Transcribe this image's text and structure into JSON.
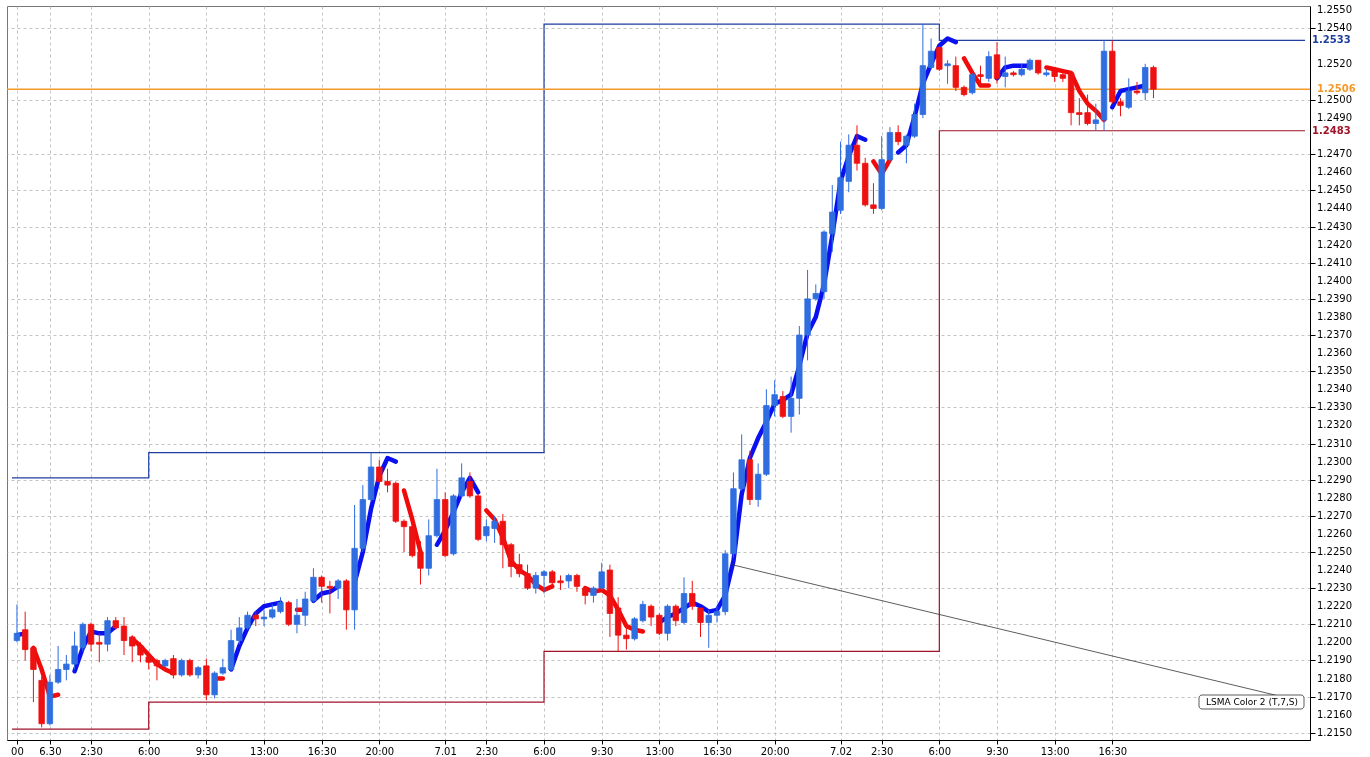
{
  "chart_data": {
    "type": "candlestick",
    "x": [
      "--06-29T22:00",
      "--06-29T22:30",
      "--06-29T23:00",
      "--06-29T23:30",
      "--06-30T00:00",
      "--06-30T00:30",
      "--06-30T01:00",
      "--06-30T01:30",
      "--06-30T02:00",
      "--06-30T02:30",
      "--06-30T03:00",
      "--06-30T03:30",
      "--06-30T04:00",
      "--06-30T04:30",
      "--06-30T05:00",
      "--06-30T05:30",
      "--06-30T06:00",
      "--06-30T06:30",
      "--06-30T07:00",
      "--06-30T07:30",
      "--06-30T08:00",
      "--06-30T08:30",
      "--06-30T09:00",
      "--06-30T09:30",
      "--06-30T10:00",
      "--06-30T10:30",
      "--06-30T11:00",
      "--06-30T11:30",
      "--06-30T12:00",
      "--06-30T12:30",
      "--06-30T13:00",
      "--06-30T13:30",
      "--06-30T14:00",
      "--06-30T14:30",
      "--06-30T15:00",
      "--06-30T15:30",
      "--06-30T16:00",
      "--06-30T16:30",
      "--06-30T17:00",
      "--06-30T17:30",
      "--06-30T18:00",
      "--06-30T18:30",
      "--06-30T19:00",
      "--06-30T19:30",
      "--06-30T20:00",
      "--06-30T20:30",
      "--06-30T21:00",
      "--06-30T21:30",
      "--06-30T22:00",
      "--06-30T22:30",
      "--06-30T23:00",
      "--06-30T23:30",
      "--07-01T00:00",
      "--07-01T00:30",
      "--07-01T01:00",
      "--07-01T01:30",
      "--07-01T02:00",
      "--07-01T02:30",
      "--07-01T03:00",
      "--07-01T03:30",
      "--07-01T04:00",
      "--07-01T04:30",
      "--07-01T05:00",
      "--07-01T05:30",
      "--07-01T06:00",
      "--07-01T06:30",
      "--07-01T07:00",
      "--07-01T07:30",
      "--07-01T08:00",
      "--07-01T08:30",
      "--07-01T09:00",
      "--07-01T09:30",
      "--07-01T10:00",
      "--07-01T10:30",
      "--07-01T11:00",
      "--07-01T11:30",
      "--07-01T12:00",
      "--07-01T12:30",
      "--07-01T13:00",
      "--07-01T13:30",
      "--07-01T14:00",
      "--07-01T14:30",
      "--07-01T15:00",
      "--07-01T15:30",
      "--07-01T16:00",
      "--07-01T16:30",
      "--07-01T17:00",
      "--07-01T17:30",
      "--07-01T18:00",
      "--07-01T18:30",
      "--07-01T19:00",
      "--07-01T19:30",
      "--07-01T20:00",
      "--07-01T20:30",
      "--07-01T21:00",
      "--07-01T21:30",
      "--07-01T22:00",
      "--07-01T22:30",
      "--07-01T23:00",
      "--07-01T23:30",
      "--07-02T00:00",
      "--07-02T00:30",
      "--07-02T01:00",
      "--07-02T01:30",
      "--07-02T02:00",
      "--07-02T02:30",
      "--07-02T03:00",
      "--07-02T03:30",
      "--07-02T04:00",
      "--07-02T04:30",
      "--07-02T05:00",
      "--07-02T05:30",
      "--07-02T06:00",
      "--07-02T06:30",
      "--07-02T07:00",
      "--07-02T07:30",
      "--07-02T08:00",
      "--07-02T08:30",
      "--07-02T09:00",
      "--07-02T09:30",
      "--07-02T10:00",
      "--07-02T10:30",
      "--07-02T11:00",
      "--07-02T11:30",
      "--07-02T12:00",
      "--07-02T12:30",
      "--07-02T13:00",
      "--07-02T13:30",
      "--07-02T14:00",
      "--07-02T14:30",
      "--07-02T15:00",
      "--07-02T15:30",
      "--07-02T16:00",
      "--07-02T16:30",
      "--07-02T17:00",
      "--07-02T17:30",
      "--07-02T18:00",
      "--07-02T18:30",
      "--07-02T19:00"
    ],
    "ohlc": [
      [
        1.2201,
        1.2221,
        1.22,
        1.2205
      ],
      [
        1.2207,
        1.2217,
        1.219,
        1.2196
      ],
      [
        1.2197,
        1.2198,
        1.2167,
        1.2185
      ],
      [
        1.2179,
        1.2181,
        1.2153,
        1.2155
      ],
      [
        1.2155,
        1.2182,
        1.2154,
        1.2178
      ],
      [
        1.2178,
        1.2198,
        1.2177,
        1.2185
      ],
      [
        1.2185,
        1.2193,
        1.2179,
        1.2188
      ],
      [
        1.2188,
        1.2206,
        1.2185,
        1.2198
      ],
      [
        1.2197,
        1.2211,
        1.2195,
        1.221
      ],
      [
        1.221,
        1.2211,
        1.2195,
        1.2199
      ],
      [
        1.22,
        1.2205,
        1.2189,
        1.2199
      ],
      [
        1.2199,
        1.2214,
        1.2195,
        1.2212
      ],
      [
        1.2212,
        1.2214,
        1.2207,
        1.2208
      ],
      [
        1.2209,
        1.2214,
        1.2193,
        1.2201
      ],
      [
        1.2203,
        1.2204,
        1.2189,
        1.2198
      ],
      [
        1.2198,
        1.22,
        1.2189,
        1.2193
      ],
      [
        1.2192,
        1.2195,
        1.2185,
        1.2189
      ],
      [
        1.219,
        1.2191,
        1.2179,
        1.2187
      ],
      [
        1.2187,
        1.2191,
        1.2186,
        1.219
      ],
      [
        1.2191,
        1.2193,
        1.218,
        1.2182
      ],
      [
        1.2182,
        1.2191,
        1.2181,
        1.219
      ],
      [
        1.219,
        1.2191,
        1.2181,
        1.2182
      ],
      [
        1.2182,
        1.2187,
        1.218,
        1.2186
      ],
      [
        1.2187,
        1.2191,
        1.2168,
        1.2171
      ],
      [
        1.2171,
        1.2184,
        1.2169,
        1.2183
      ],
      [
        1.2183,
        1.2191,
        1.2182,
        1.2186
      ],
      [
        1.2185,
        1.2207,
        1.2184,
        1.2201
      ],
      [
        1.2201,
        1.2214,
        1.2199,
        1.2208
      ],
      [
        1.2208,
        1.2217,
        1.2207,
        1.2215
      ],
      [
        1.2215,
        1.2217,
        1.2209,
        1.2213
      ],
      [
        1.2213,
        1.2218,
        1.2209,
        1.2214
      ],
      [
        1.2214,
        1.2221,
        1.2213,
        1.2218
      ],
      [
        1.2217,
        1.2225,
        1.2216,
        1.2222
      ],
      [
        1.2222,
        1.2223,
        1.2209,
        1.221
      ],
      [
        1.221,
        1.2224,
        1.2205,
        1.2215
      ],
      [
        1.2215,
        1.2228,
        1.2209,
        1.2224
      ],
      [
        1.2223,
        1.2241,
        1.2222,
        1.2236
      ],
      [
        1.2236,
        1.2237,
        1.2222,
        1.2231
      ],
      [
        1.2231,
        1.2234,
        1.2216,
        1.223
      ],
      [
        1.223,
        1.2235,
        1.2224,
        1.2234
      ],
      [
        1.2234,
        1.2235,
        1.2207,
        1.2218
      ],
      [
        1.2218,
        1.2276,
        1.2207,
        1.2252
      ],
      [
        1.2252,
        1.2287,
        1.225,
        1.2279
      ],
      [
        1.2279,
        1.2305,
        1.2278,
        1.2297
      ],
      [
        1.2297,
        1.2301,
        1.2288,
        1.2289
      ],
      [
        1.2289,
        1.2296,
        1.2283,
        1.2287
      ],
      [
        1.2288,
        1.2289,
        1.2266,
        1.2267
      ],
      [
        1.2267,
        1.2268,
        1.225,
        1.2264
      ],
      [
        1.2264,
        1.2268,
        1.2247,
        1.2248
      ],
      [
        1.225,
        1.2256,
        1.2232,
        1.2241
      ],
      [
        1.2241,
        1.2268,
        1.2237,
        1.2259
      ],
      [
        1.2259,
        1.2296,
        1.2258,
        1.2279
      ],
      [
        1.2279,
        1.2283,
        1.2247,
        1.2248
      ],
      [
        1.2249,
        1.2282,
        1.2248,
        1.2281
      ],
      [
        1.2281,
        1.2299,
        1.228,
        1.2291
      ],
      [
        1.2289,
        1.2294,
        1.228,
        1.2281
      ],
      [
        1.2281,
        1.2282,
        1.2256,
        1.2257
      ],
      [
        1.2259,
        1.2268,
        1.2256,
        1.2264
      ],
      [
        1.2263,
        1.227,
        1.2255,
        1.2267
      ],
      [
        1.2267,
        1.2271,
        1.2241,
        1.2254
      ],
      [
        1.2254,
        1.2255,
        1.2236,
        1.2242
      ],
      [
        1.2243,
        1.2249,
        1.2236,
        1.2238
      ],
      [
        1.2238,
        1.2243,
        1.2229,
        1.223
      ],
      [
        1.223,
        1.2239,
        1.2227,
        1.2237
      ],
      [
        1.2237,
        1.224,
        1.2227,
        1.2239
      ],
      [
        1.2239,
        1.224,
        1.2232,
        1.2233
      ],
      [
        1.2234,
        1.2237,
        1.2229,
        1.2233
      ],
      [
        1.2234,
        1.2238,
        1.223,
        1.2237
      ],
      [
        1.2237,
        1.2238,
        1.2228,
        1.2231
      ],
      [
        1.223,
        1.2231,
        1.2221,
        1.2226
      ],
      [
        1.2226,
        1.2231,
        1.2222,
        1.223
      ],
      [
        1.223,
        1.2244,
        1.2229,
        1.2239
      ],
      [
        1.224,
        1.2243,
        1.2203,
        1.2216
      ],
      [
        1.2219,
        1.2225,
        1.2195,
        1.2204
      ],
      [
        1.2204,
        1.2211,
        1.2196,
        1.2202
      ],
      [
        1.2202,
        1.2214,
        1.2201,
        1.2213
      ],
      [
        1.2212,
        1.2223,
        1.2211,
        1.2221
      ],
      [
        1.222,
        1.2221,
        1.2209,
        1.2214
      ],
      [
        1.2215,
        1.2216,
        1.2204,
        1.2205
      ],
      [
        1.2205,
        1.2221,
        1.2201,
        1.222
      ],
      [
        1.222,
        1.2221,
        1.2209,
        1.2212
      ],
      [
        1.2211,
        1.2236,
        1.221,
        1.2227
      ],
      [
        1.2227,
        1.2234,
        1.2218,
        1.222
      ],
      [
        1.2219,
        1.2219,
        1.2203,
        1.2211
      ],
      [
        1.2211,
        1.2218,
        1.2197,
        1.2215
      ],
      [
        1.2215,
        1.222,
        1.2211,
        1.2217
      ],
      [
        1.2217,
        1.2251,
        1.2215,
        1.2249
      ],
      [
        1.2249,
        1.2294,
        1.2247,
        1.2285
      ],
      [
        1.2285,
        1.2315,
        1.2284,
        1.2301
      ],
      [
        1.2301,
        1.2306,
        1.2276,
        1.2279
      ],
      [
        1.2279,
        1.2299,
        1.2275,
        1.2293
      ],
      [
        1.2293,
        1.234,
        1.2292,
        1.2331
      ],
      [
        1.2331,
        1.2345,
        1.2325,
        1.2337
      ],
      [
        1.2336,
        1.2339,
        1.2324,
        1.2325
      ],
      [
        1.2325,
        1.2347,
        1.2316,
        1.2335
      ],
      [
        1.2335,
        1.2375,
        1.2326,
        1.237
      ],
      [
        1.237,
        1.2406,
        1.2356,
        1.239
      ],
      [
        1.239,
        1.2398,
        1.2389,
        1.2393
      ],
      [
        1.2394,
        1.2428,
        1.239,
        1.2427
      ],
      [
        1.2426,
        1.2453,
        1.2416,
        1.2438
      ],
      [
        1.2439,
        1.2477,
        1.2437,
        1.2457
      ],
      [
        1.2455,
        1.2481,
        1.2449,
        1.2475
      ],
      [
        1.2475,
        1.2486,
        1.2461,
        1.2465
      ],
      [
        1.2465,
        1.2468,
        1.2441,
        1.2442
      ],
      [
        1.2442,
        1.2454,
        1.2437,
        1.244
      ],
      [
        1.244,
        1.248,
        1.2439,
        1.2467
      ],
      [
        1.2467,
        1.2485,
        1.2466,
        1.2482
      ],
      [
        1.2482,
        1.2486,
        1.2475,
        1.2477
      ],
      [
        1.2475,
        1.2481,
        1.2465,
        1.248
      ],
      [
        1.248,
        1.2498,
        1.2479,
        1.2492
      ],
      [
        1.2492,
        1.2542,
        1.249,
        1.2519
      ],
      [
        1.2518,
        1.2534,
        1.2517,
        1.2527
      ],
      [
        1.2529,
        1.253,
        1.2516,
        1.2517
      ],
      [
        1.2519,
        1.2522,
        1.2509,
        1.252
      ],
      [
        1.2519,
        1.2524,
        1.2505,
        1.2507
      ],
      [
        1.2507,
        1.2508,
        1.2502,
        1.2503
      ],
      [
        1.2504,
        1.2515,
        1.2503,
        1.2514
      ],
      [
        1.2514,
        1.2519,
        1.2507,
        1.2513
      ],
      [
        1.2512,
        1.2527,
        1.251,
        1.2524
      ],
      [
        1.2525,
        1.2532,
        1.2509,
        1.2512
      ],
      [
        1.2513,
        1.2524,
        1.2507,
        1.2515
      ],
      [
        1.2515,
        1.2516,
        1.2513,
        1.2514
      ],
      [
        1.2514,
        1.252,
        1.2513,
        1.2517
      ],
      [
        1.2517,
        1.2523,
        1.2516,
        1.2522
      ],
      [
        1.2522,
        1.2522,
        1.2514,
        1.2515
      ],
      [
        1.2514,
        1.2517,
        1.2513,
        1.2515
      ],
      [
        1.2516,
        1.2517,
        1.251,
        1.2513
      ],
      [
        1.2514,
        1.2516,
        1.251,
        1.2512
      ],
      [
        1.2515,
        1.2516,
        1.2486,
        1.2493
      ],
      [
        1.2493,
        1.2501,
        1.2486,
        1.2492
      ],
      [
        1.2493,
        1.2503,
        1.2486,
        1.2487
      ],
      [
        1.2487,
        1.2498,
        1.2483,
        1.2489
      ],
      [
        1.2489,
        1.2533,
        1.2483,
        1.2527
      ],
      [
        1.2527,
        1.2533,
        1.2498,
        1.2499
      ],
      [
        1.2499,
        1.2501,
        1.2491,
        1.2497
      ],
      [
        1.2496,
        1.2512,
        1.2495,
        1.2505
      ],
      [
        1.2505,
        1.251,
        1.2503,
        1.2504
      ],
      [
        1.2504,
        1.252,
        1.25,
        1.2518
      ],
      [
        1.2518,
        1.2519,
        1.2501,
        1.2506
      ]
    ],
    "colors": [
      "#2f6de0",
      "#ee1111",
      "#ee1111",
      "#ee1111",
      "#2f6de0",
      "#2f6de0",
      "#2f6de0",
      "#2f6de0",
      "#2f6de0",
      "#ee1111",
      "#ee1111",
      "#2f6de0",
      "#ee1111",
      "#ee1111",
      "#ee1111",
      "#ee1111",
      "#ee1111",
      "#ee1111",
      "#2f6de0",
      "#ee1111",
      "#2f6de0",
      "#ee1111",
      "#2f6de0",
      "#ee1111",
      "#2f6de0",
      "#2f6de0",
      "#2f6de0",
      "#2f6de0",
      "#2f6de0",
      "#ee1111",
      "#2f6de0",
      "#2f6de0",
      "#2f6de0",
      "#ee1111",
      "#2f6de0",
      "#2f6de0",
      "#2f6de0",
      "#ee1111",
      "#ee1111",
      "#2f6de0",
      "#ee1111",
      "#2f6de0",
      "#2f6de0",
      "#2f6de0",
      "#ee1111",
      "#ee1111",
      "#ee1111",
      "#ee1111",
      "#ee1111",
      "#ee1111",
      "#2f6de0",
      "#2f6de0",
      "#ee1111",
      "#2f6de0",
      "#2f6de0",
      "#ee1111",
      "#ee1111",
      "#2f6de0",
      "#2f6de0",
      "#ee1111",
      "#ee1111",
      "#ee1111",
      "#ee1111",
      "#2f6de0",
      "#2f6de0",
      "#ee1111",
      "#ee1111",
      "#2f6de0",
      "#ee1111",
      "#ee1111",
      "#2f6de0",
      "#2f6de0",
      "#ee1111",
      "#ee1111",
      "#ee1111",
      "#2f6de0",
      "#2f6de0",
      "#ee1111",
      "#ee1111",
      "#2f6de0",
      "#ee1111",
      "#2f6de0",
      "#ee1111",
      "#ee1111",
      "#2f6de0",
      "#2f6de0",
      "#2f6de0",
      "#2f6de0",
      "#2f6de0",
      "#ee1111",
      "#2f6de0",
      "#2f6de0",
      "#2f6de0",
      "#ee1111",
      "#2f6de0",
      "#2f6de0",
      "#2f6de0",
      "#2f6de0",
      "#2f6de0",
      "#2f6de0",
      "#2f6de0",
      "#2f6de0",
      "#ee1111",
      "#ee1111",
      "#ee1111",
      "#2f6de0",
      "#2f6de0",
      "#ee1111",
      "#2f6de0",
      "#2f6de0",
      "#2f6de0",
      "#2f6de0",
      "#ee1111",
      "#2f6de0",
      "#ee1111",
      "#ee1111",
      "#2f6de0",
      "#ee1111",
      "#2f6de0",
      "#ee1111",
      "#2f6de0",
      "#ee1111",
      "#2f6de0",
      "#2f6de0",
      "#ee1111",
      "#2f6de0",
      "#ee1111",
      "#ee1111",
      "#ee1111",
      "#ee1111",
      "#ee1111",
      "#2f6de0",
      "#2f6de0",
      "#ee1111",
      "#ee1111",
      "#2f6de0",
      "#ee1111",
      "#2f6de0",
      "#ee1111"
    ],
    "series": [
      {
        "type": "step",
        "color": "#1f3f9f",
        "x": [
          "--06-29T21:42",
          "--06-30T06:00",
          "--07-01T06:00",
          "--07-02T06:00",
          "--07-03T04:12"
        ],
        "values": [
          1.2291,
          1.2305,
          1.2542,
          1.2533,
          1.2533
        ],
        "value_labels": [
          null,
          null,
          null,
          null,
          "1.2533"
        ]
      },
      {
        "type": "step",
        "color": "#a01228",
        "x": [
          "--06-29T21:42",
          "--06-30T06:00",
          "--07-01T06:00",
          "--07-02T06:00",
          "--07-03T04:12"
        ],
        "values": [
          1.2152,
          1.2167,
          1.2195,
          1.2483,
          1.2483
        ],
        "value_labels": [
          null,
          null,
          null,
          null,
          "1.2483"
        ]
      },
      {
        "type": "line",
        "color": "#0a10f0",
        "x": [
          "--06-29T22:00",
          "--06-29T22:30",
          "--06-29T22:45",
          "--06-30T01:30",
          "--06-30T02:00",
          "--06-30T02:30",
          "--06-30T03:00",
          "--06-30T03:30",
          "--06-30T04:00",
          "--06-30T04:15",
          "--06-30T11:00",
          "--06-30T11:30",
          "--06-30T12:00",
          "--06-30T12:30",
          "--06-30T13:00",
          "--06-30T13:30",
          "--06-30T14:00",
          "--06-30T14:30",
          "--06-30T16:00",
          "--06-30T16:30",
          "--06-30T17:00",
          "--06-30T17:30",
          "--06-30T18:00",
          "--06-30T18:30",
          "--06-30T19:00",
          "--06-30T19:30",
          "--06-30T20:00",
          "--06-30T20:30",
          "--06-30T21:00",
          "--06-30T21:15",
          "--06-30T23:30",
          "--07-01T00:00",
          "--07-01T00:30",
          "--07-01T01:00",
          "--07-01T01:30",
          "--07-01T02:00",
          "--07-01T02:15",
          "--07-01T07:00",
          "--07-01T07:30",
          "--07-01T08:00",
          "--07-01T08:15",
          "--07-01T13:00",
          "--07-01T13:30",
          "--07-01T14:00",
          "--07-01T14:30",
          "--07-01T15:00",
          "--07-01T15:30",
          "--07-01T16:00",
          "--07-01T16:30",
          "--07-01T17:00",
          "--07-01T17:30",
          "--07-01T18:00",
          "--07-01T18:30",
          "--07-01T19:00",
          "--07-01T19:30",
          "--07-01T20:00",
          "--07-01T20:30",
          "--07-01T21:00",
          "--07-01T21:30",
          "--07-01T22:00",
          "--07-01T22:30",
          "--07-01T23:00",
          "--07-01T23:30",
          "--07-02T00:00",
          "--07-02T00:30",
          "--07-02T01:00",
          "--07-02T01:30",
          "--07-02T01:45",
          "--07-02T03:30",
          "--07-02T04:00",
          "--07-02T04:30",
          "--07-02T05:00",
          "--07-02T05:30",
          "--07-02T06:00",
          "--07-02T06:30",
          "--07-02T07:00",
          "--07-02T07:15",
          "--07-02T09:30",
          "--07-02T10:00",
          "--07-02T10:30",
          "--07-02T11:00",
          "--07-02T11:30",
          "--07-02T12:00",
          "--07-02T16:30",
          "--07-02T17:00",
          "--07-02T17:30",
          "--07-02T18:00",
          "--07-02T18:30"
        ],
        "values": [
          1.2204,
          1.2205,
          null,
          1.2184,
          1.2197,
          1.2206,
          1.2205,
          1.2205,
          1.2209,
          null,
          1.2185,
          1.2198,
          1.2208,
          1.2216,
          1.222,
          1.2221,
          1.2222,
          null,
          1.2223,
          1.2227,
          1.2228,
          1.2231,
          null,
          1.2233,
          1.225,
          1.2274,
          1.2292,
          1.2302,
          1.23,
          null,
          1.2254,
          1.2262,
          1.2272,
          1.2283,
          1.2291,
          1.2283,
          null,
          null,
          null,
          null,
          null,
          1.2211,
          1.2214,
          1.2216,
          1.2219,
          1.2222,
          1.222,
          1.2217,
          1.2218,
          1.2226,
          1.2245,
          1.2282,
          1.2302,
          1.2313,
          1.2322,
          1.2332,
          1.2334,
          1.2337,
          1.2353,
          1.2371,
          1.238,
          1.2398,
          1.2425,
          1.2455,
          1.2469,
          1.248,
          1.2478,
          null,
          1.2471,
          1.2475,
          1.2491,
          1.2509,
          1.252,
          1.253,
          1.2534,
          1.2532,
          null,
          1.2512,
          1.2518,
          1.2519,
          1.2519,
          1.2519,
          null,
          1.2496,
          1.2505,
          1.2506,
          1.2507,
          1.2508
        ]
      },
      {
        "type": "line",
        "color": "#f00a0a",
        "x": [
          "--06-29T23:00",
          "--06-29T23:30",
          "--06-30T00:00",
          "--06-30T00:30",
          "--06-30T00:45",
          "--06-30T05:00",
          "--06-30T05:30",
          "--06-30T06:00",
          "--06-30T06:30",
          "--06-30T07:00",
          "--06-30T07:30",
          "--06-30T08:00",
          "--06-30T10:00",
          "--06-30T10:30",
          "--06-30T10:45",
          "--06-30T15:00",
          "--06-30T15:30",
          "--06-30T15:45",
          "--06-30T21:30",
          "--06-30T22:00",
          "--06-30T22:30",
          "--06-30T23:00",
          "--06-30T23:15",
          "--07-01T02:30",
          "--07-01T03:00",
          "--07-01T03:30",
          "--07-01T04:00",
          "--07-01T04:30",
          "--07-01T05:00",
          "--07-01T05:30",
          "--07-01T06:00",
          "--07-01T06:30",
          "--07-01T06:45",
          "--07-01T08:30",
          "--07-01T09:00",
          "--07-01T09:30",
          "--07-01T10:00",
          "--07-01T10:30",
          "--07-01T11:00",
          "--07-01T11:30",
          "--07-01T12:00",
          "--07-01T12:30",
          "--07-02T02:00",
          "--07-02T02:30",
          "--07-02T03:00",
          "--07-02T03:15",
          "--07-02T07:30",
          "--07-02T08:00",
          "--07-02T08:30",
          "--07-02T09:00",
          "--07-02T09:15",
          "--07-02T12:30",
          "--07-02T13:00",
          "--07-02T13:30",
          "--07-02T14:00",
          "--07-02T14:30",
          "--07-02T15:00",
          "--07-02T15:30",
          "--07-02T16:00"
        ],
        "values": [
          1.2197,
          1.2185,
          1.217,
          1.2171,
          null,
          1.2202,
          1.2198,
          1.2193,
          1.2188,
          1.2185,
          1.2183,
          null,
          1.218,
          1.218,
          null,
          1.2218,
          1.2218,
          null,
          1.2284,
          1.2268,
          1.225,
          null,
          null,
          1.2273,
          1.2268,
          1.2258,
          1.2245,
          1.224,
          1.2237,
          1.2232,
          1.2229,
          1.2231,
          null,
          1.223,
          1.2228,
          1.2229,
          1.2226,
          1.2218,
          1.2209,
          1.2207,
          1.2206,
          null,
          1.2466,
          1.2459,
          1.2467,
          null,
          1.2523,
          1.2515,
          1.2508,
          1.2508,
          null,
          1.2518,
          1.2517,
          1.2516,
          1.2515,
          1.2505,
          1.2498,
          1.2494,
          1.2489
        ]
      }
    ],
    "ref_lines": [
      {
        "axis": "y",
        "value": 1.2506,
        "label": "1.2506",
        "color": "#f39a2b"
      }
    ],
    "annotations": [
      {
        "text": "LSMA Color 2 (T,7,S)",
        "x": "--07-01T17:24",
        "y": 1.2243
      }
    ],
    "xlim": [
      "--06-29T21:42",
      "--07-03T04:12"
    ],
    "ylim": [
      1.2146,
      1.2552
    ],
    "xticks": [
      {
        "value": "--06-29T22:00",
        "label": "00"
      },
      {
        "value": "--06-30T00:00",
        "label": "6.30"
      },
      {
        "value": "--06-30T02:30",
        "label": "2:30"
      },
      {
        "value": "--06-30T06:00",
        "label": "6:00"
      },
      {
        "value": "--06-30T09:30",
        "label": "9:30"
      },
      {
        "value": "--06-30T13:00",
        "label": "13:00"
      },
      {
        "value": "--06-30T16:30",
        "label": "16:30"
      },
      {
        "value": "--06-30T20:00",
        "label": "20:00"
      },
      {
        "value": "--07-01T00:00",
        "label": "7.01"
      },
      {
        "value": "--07-01T02:30",
        "label": "2:30"
      },
      {
        "value": "--07-01T06:00",
        "label": "6:00"
      },
      {
        "value": "--07-01T09:30",
        "label": "9:30"
      },
      {
        "value": "--07-01T13:00",
        "label": "13:00"
      },
      {
        "value": "--07-01T16:30",
        "label": "16:30"
      },
      {
        "value": "--07-01T20:00",
        "label": "20:00"
      },
      {
        "value": "--07-02T00:00",
        "label": "7.02"
      },
      {
        "value": "--07-02T02:30",
        "label": "2:30"
      },
      {
        "value": "--07-02T06:00",
        "label": "6:00"
      },
      {
        "value": "--07-02T09:30",
        "label": "9:30"
      },
      {
        "value": "--07-02T13:00",
        "label": "13:00"
      },
      {
        "value": "--07-02T16:30",
        "label": "16:30"
      }
    ],
    "yticks": [
      {
        "value": 1.215,
        "label": "1.2150"
      },
      {
        "value": 1.216,
        "label": "1.2160"
      },
      {
        "value": 1.217,
        "label": "1.2170"
      },
      {
        "value": 1.218,
        "label": "1.2180"
      },
      {
        "value": 1.219,
        "label": "1.2190"
      },
      {
        "value": 1.22,
        "label": "1.2200"
      },
      {
        "value": 1.221,
        "label": "1.2210"
      },
      {
        "value": 1.222,
        "label": "1.2220"
      },
      {
        "value": 1.223,
        "label": "1.2230"
      },
      {
        "value": 1.224,
        "label": "1.2240"
      },
      {
        "value": 1.225,
        "label": "1.2250"
      },
      {
        "value": 1.226,
        "label": "1.2260"
      },
      {
        "value": 1.227,
        "label": "1.2270"
      },
      {
        "value": 1.228,
        "label": "1.2280"
      },
      {
        "value": 1.229,
        "label": "1.2290"
      },
      {
        "value": 1.23,
        "label": "1.2300"
      },
      {
        "value": 1.231,
        "label": "1.2310"
      },
      {
        "value": 1.232,
        "label": "1.2320"
      },
      {
        "value": 1.233,
        "label": "1.2330"
      },
      {
        "value": 1.234,
        "label": "1.2340"
      },
      {
        "value": 1.235,
        "label": "1.2350"
      },
      {
        "value": 1.236,
        "label": "1.2360"
      },
      {
        "value": 1.237,
        "label": "1.2370"
      },
      {
        "value": 1.238,
        "label": "1.2380"
      },
      {
        "value": 1.239,
        "label": "1.2390"
      },
      {
        "value": 1.24,
        "label": "1.2400"
      },
      {
        "value": 1.241,
        "label": "1.2410"
      },
      {
        "value": 1.242,
        "label": "1.2420"
      },
      {
        "value": 1.243,
        "label": "1.2430"
      },
      {
        "value": 1.244,
        "label": "1.2440"
      },
      {
        "value": 1.245,
        "label": "1.2450"
      },
      {
        "value": 1.246,
        "label": "1.2460"
      },
      {
        "value": 1.247,
        "label": "1.2470"
      },
      {
        "value": 1.249,
        "label": "1.2490"
      },
      {
        "value": 1.25,
        "label": "1.2500"
      },
      {
        "value": 1.252,
        "label": "1.2520"
      },
      {
        "value": 1.254,
        "label": "1.2540"
      },
      {
        "value": 1.255,
        "label": "1.2550"
      }
    ],
    "grid": true
  }
}
